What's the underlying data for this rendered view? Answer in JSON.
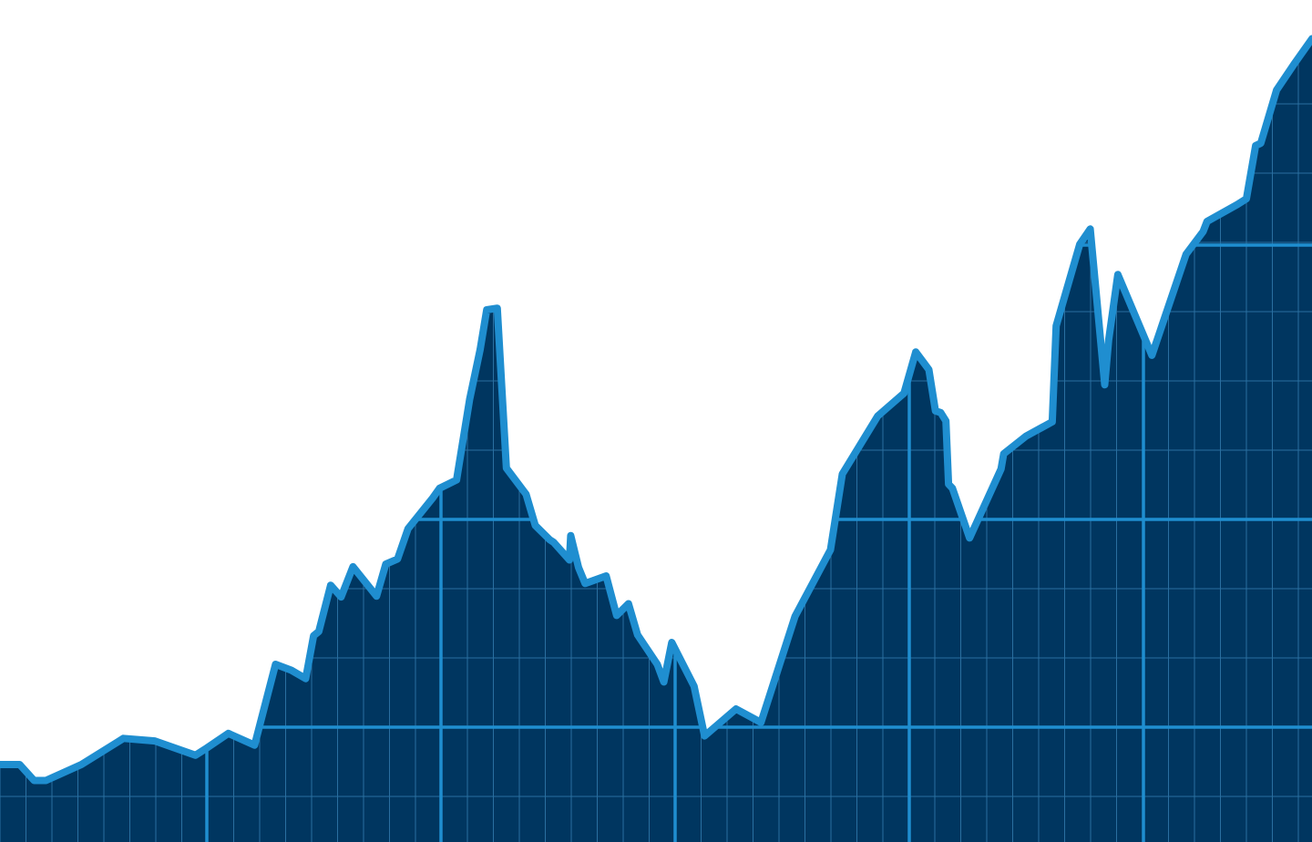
{
  "chart_data": {
    "type": "area",
    "title": "",
    "xlabel": "",
    "ylabel": "",
    "xlim": [
      0,
      100
    ],
    "ylim": [
      0,
      100
    ],
    "grid": true,
    "legend": "none",
    "colors": {
      "fill": "#003660",
      "line": "#1f8ed0",
      "grid_major": "#1f8ed0",
      "grid_minor": "#2a6fa0",
      "background": "#ffffff"
    },
    "series": [
      {
        "x": [
          0,
          1.5,
          2.6,
          3.5,
          6.2,
          9.4,
          11.8,
          14.9,
          15.6,
          17.4,
          19.4,
          21.0,
          22.2,
          23.3,
          23.9,
          24.3,
          25.2,
          26.0,
          26.9,
          28.7,
          29.4,
          30.3,
          31.1,
          33.0,
          33.5,
          34.8,
          35.8,
          36.6,
          37.1,
          37.9,
          38.6,
          40.1,
          40.8,
          41.9,
          42.2,
          43.4,
          43.5,
          44.1,
          44.6,
          46.2,
          47.0,
          47.9,
          48.6,
          50.1,
          50.6,
          51.2,
          52.9,
          53.7,
          56.1,
          58.0,
          60.6,
          63.3,
          64.2,
          66.9,
          68.9,
          69.8,
          70.8,
          71.3,
          71.7,
          72.1,
          72.3,
          72.6,
          73.9,
          76.3,
          76.5,
          78.2,
          80.2,
          80.5,
          82.3,
          83.1,
          84.2,
          84.5,
          85.2,
          87.8,
          90.4,
          91.7,
          92.0,
          94.3,
          95.0,
          95.7,
          96.1,
          97.3,
          98.6,
          100
        ],
        "y": [
          9.2,
          9.2,
          7.3,
          7.3,
          9.2,
          12.3,
          12.0,
          10.3,
          11.0,
          12.9,
          11.5,
          21.1,
          20.4,
          19.4,
          24.5,
          25.0,
          30.5,
          29.1,
          32.7,
          29.2,
          33.0,
          33.6,
          37.2,
          40.9,
          42.0,
          43.0,
          52.6,
          58.5,
          63.2,
          63.4,
          44.4,
          41.3,
          37.6,
          35.9,
          35.6,
          33.5,
          36.4,
          32.6,
          30.7,
          31.6,
          26.9,
          28.3,
          24.6,
          21.1,
          19.0,
          23.7,
          18.5,
          12.6,
          15.8,
          14.2,
          26.8,
          34.7,
          43.7,
          50.6,
          53.3,
          58.2,
          56.1,
          51.2,
          51.0,
          50.0,
          42.5,
          42.0,
          36.1,
          44.3,
          46.1,
          48.2,
          49.9,
          61.3,
          71.0,
          72.8,
          54.3,
          59.6,
          67.4,
          57.8,
          69.8,
          72.5,
          73.7,
          75.7,
          76.4,
          82.7,
          83.0,
          89.3,
          92.3,
          95.4
        ]
      }
    ]
  }
}
